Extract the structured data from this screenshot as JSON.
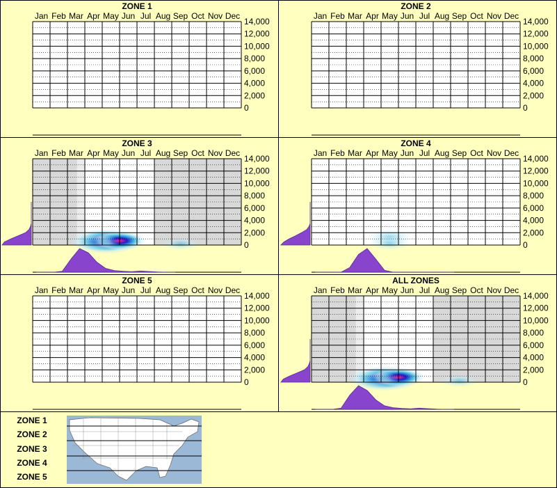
{
  "colors": {
    "background": "#ffffc0",
    "grid": "#000000",
    "shade": "#d8d8d8",
    "shade_light": "#ececec",
    "density": "#8844cc",
    "heat_low": "#c8ecf4",
    "heat_mid": "#38b4e0",
    "heat_core": "#2020c8",
    "heat_peak": "#ff2090",
    "map_water": "#9bb8d6",
    "map_land": "#ffffff"
  },
  "chart_data": [
    {
      "type": "heatmap",
      "title": "ZONE 1",
      "x_categories": [
        "Jan",
        "Feb",
        "Mar",
        "Apr",
        "May",
        "Jun",
        "Jul",
        "Aug",
        "Sep",
        "Oct",
        "Nov",
        "Dec"
      ],
      "y_ticks": [
        "14,000",
        "12,000",
        "10,000",
        "8,000",
        "6,000",
        "4,000",
        "2,000",
        "0"
      ],
      "ylim": [
        0,
        14000
      ],
      "shaded_months": [],
      "hotspots": [],
      "month_density": [],
      "elevation_density": []
    },
    {
      "type": "heatmap",
      "title": "ZONE 2",
      "x_categories": [
        "Jan",
        "Feb",
        "Mar",
        "Apr",
        "May",
        "Jun",
        "Jul",
        "Aug",
        "Sep",
        "Oct",
        "Nov",
        "Dec"
      ],
      "y_ticks": [
        "14,000",
        "12,000",
        "10,000",
        "8,000",
        "6,000",
        "4,000",
        "2,000",
        "0"
      ],
      "ylim": [
        0,
        14000
      ],
      "shaded_months": [],
      "hotspots": [],
      "month_density": [],
      "elevation_density": []
    },
    {
      "type": "heatmap",
      "title": "ZONE 3",
      "x_categories": [
        "Jan",
        "Feb",
        "Mar",
        "Apr",
        "May",
        "Jun",
        "Jul",
        "Aug",
        "Sep",
        "Oct",
        "Nov",
        "Dec"
      ],
      "y_ticks": [
        "14,000",
        "12,000",
        "10,000",
        "8,000",
        "6,000",
        "4,000",
        "2,000",
        "0"
      ],
      "ylim": [
        0,
        14000
      ],
      "shaded_months": [
        0,
        1,
        2,
        7,
        8,
        9,
        10,
        11
      ],
      "hotspots": [
        {
          "month": 4.2,
          "elev": 600,
          "intensity": 1.0
        },
        {
          "month": 5.0,
          "elev": 700,
          "intensity": 0.55
        },
        {
          "month": 3.6,
          "elev": 500,
          "intensity": 0.4
        },
        {
          "month": 8.5,
          "elev": 200,
          "intensity": 0.12
        }
      ],
      "month_density": [
        0,
        0,
        0,
        0.04,
        0.55,
        1.0,
        0.82,
        0.42,
        0.16,
        0.07,
        0.04,
        0.02,
        0.05,
        0.03,
        0.01,
        0,
        0
      ],
      "elevation_density": [
        1.0,
        0.92,
        0.7,
        0.45,
        0.2,
        0.08,
        0.03,
        0,
        0,
        0,
        0,
        0,
        0,
        0,
        0
      ]
    },
    {
      "type": "heatmap",
      "title": "ZONE 4",
      "x_categories": [
        "Jan",
        "Feb",
        "Mar",
        "Apr",
        "May",
        "Jun",
        "Jul",
        "Aug",
        "Sep",
        "Oct",
        "Nov",
        "Dec"
      ],
      "y_ticks": [
        "14,000",
        "12,000",
        "10,000",
        "8,000",
        "6,000",
        "4,000",
        "2,000",
        "0"
      ],
      "ylim": [
        0,
        14000
      ],
      "shaded_months": [],
      "hotspots": [
        {
          "month": 4.5,
          "elev": 1300,
          "intensity": 0.28
        },
        {
          "month": 4.5,
          "elev": 300,
          "intensity": 0.22
        }
      ],
      "month_density": [
        0,
        0,
        0,
        0,
        0.2,
        0.75,
        1.0,
        0.55,
        0.08,
        0,
        0,
        0,
        0,
        0,
        0,
        0,
        0
      ],
      "elevation_density": [
        1.0,
        0.9,
        0.72,
        0.5,
        0.3,
        0.12,
        0.04,
        0,
        0,
        0,
        0,
        0,
        0,
        0,
        0
      ]
    },
    {
      "type": "heatmap",
      "title": "ZONE 5",
      "x_categories": [
        "Jan",
        "Feb",
        "Mar",
        "Apr",
        "May",
        "Jun",
        "Jul",
        "Aug",
        "Sep",
        "Oct",
        "Nov",
        "Dec"
      ],
      "y_ticks": [
        "14,000",
        "12,000",
        "10,000",
        "8,000",
        "6,000",
        "4,000",
        "2,000",
        "0"
      ],
      "ylim": [
        0,
        14000
      ],
      "shaded_months": [],
      "hotspots": [],
      "month_density": [],
      "elevation_density": []
    },
    {
      "type": "heatmap",
      "title": "ALL ZONES",
      "x_categories": [
        "Jan",
        "Feb",
        "Mar",
        "Apr",
        "May",
        "Jun",
        "Jul",
        "Aug",
        "Sep",
        "Oct",
        "Nov",
        "Dec"
      ],
      "y_ticks": [
        "14,000",
        "12,000",
        "10,000",
        "8,000",
        "6,000",
        "4,000",
        "2,000",
        "0"
      ],
      "ylim": [
        0,
        14000
      ],
      "shaded_months": [
        0,
        1,
        2,
        7,
        8,
        9,
        10,
        11
      ],
      "hotspots": [
        {
          "month": 4.2,
          "elev": 600,
          "intensity": 1.0
        },
        {
          "month": 5.0,
          "elev": 800,
          "intensity": 0.55
        },
        {
          "month": 3.6,
          "elev": 500,
          "intensity": 0.45
        },
        {
          "month": 8.5,
          "elev": 200,
          "intensity": 0.12
        }
      ],
      "month_density": [
        0,
        0,
        0,
        0.05,
        0.6,
        1.0,
        0.8,
        0.4,
        0.15,
        0.07,
        0.04,
        0.02,
        0.05,
        0.03,
        0.01,
        0,
        0
      ],
      "elevation_density": [
        1.0,
        0.92,
        0.7,
        0.45,
        0.2,
        0.08,
        0.03,
        0,
        0,
        0,
        0,
        0,
        0,
        0,
        0
      ]
    }
  ],
  "legend": {
    "zones": [
      "ZONE 1",
      "ZONE 2",
      "ZONE 3",
      "ZONE 4",
      "ZONE 5"
    ],
    "map_icon": "usa-map-icon"
  }
}
